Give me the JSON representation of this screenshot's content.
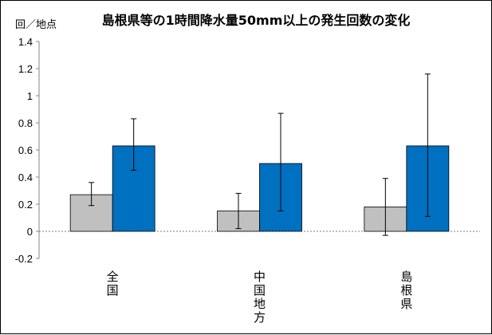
{
  "chart_data": {
    "type": "bar",
    "title": "島根県等の1時間降水量50mm以上の発生回数の変化",
    "ylabel": "回／地点",
    "xlabel": "",
    "categories": [
      "全国",
      "中国地方",
      "島根県"
    ],
    "series": [
      {
        "values": [
          0.27,
          0.15,
          0.18
        ],
        "err_low": [
          0.19,
          0.02,
          -0.03
        ],
        "err_high": [
          0.36,
          0.28,
          0.39
        ],
        "color": "#c0c0c0"
      },
      {
        "values": [
          0.63,
          0.5,
          0.63
        ],
        "err_low": [
          0.45,
          0.15,
          0.11
        ],
        "err_high": [
          0.83,
          0.87,
          1.16
        ],
        "color": "#0070c0"
      }
    ],
    "ylim": [
      -0.2,
      1.4
    ],
    "yticks": [
      "-0.2",
      "0",
      "0.2",
      "0.4",
      "0.6",
      "0.8",
      "1",
      "1.2",
      "1.4"
    ],
    "grid": false,
    "zero_line": "dotted"
  }
}
